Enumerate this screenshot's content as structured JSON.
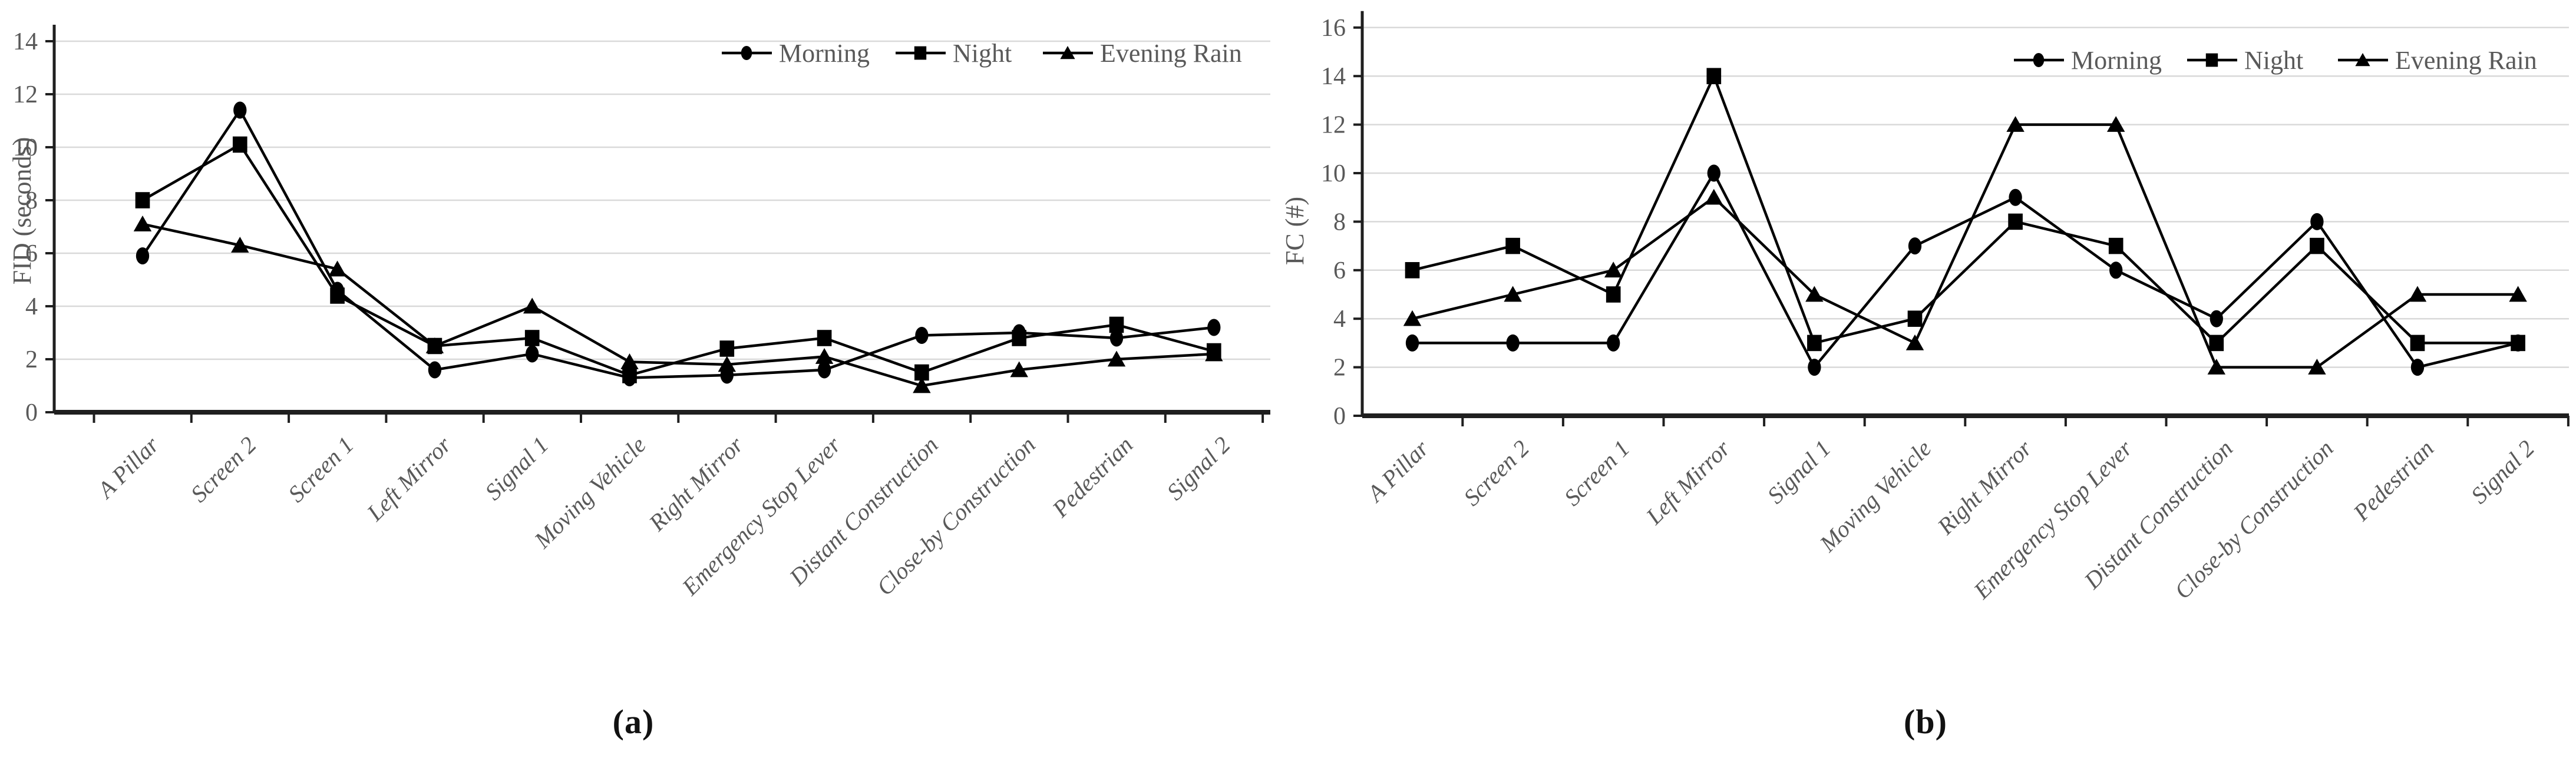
{
  "colors": {
    "series": "#000000",
    "grid": "#d9d9d9",
    "axis": "#1f1f1f",
    "text": "#595959",
    "background": "#ffffff"
  },
  "chart_data": [
    {
      "panel": "a",
      "type": "line",
      "caption": "(a)",
      "title": "",
      "xlabel": "",
      "ylabel": "FID (seconds)",
      "ylim": [
        0,
        14
      ],
      "ytick_step": 2,
      "grid": true,
      "legend_position": "top-right-inside",
      "categories": [
        "A Pillar",
        "Screen 2",
        "Screen 1",
        "Left Mirror",
        "Signal 1",
        "Moving Vehicle",
        "Right Mirror",
        "Emergency Stop Lever",
        "Distant Construction",
        "Close-by Construction",
        "Pedestrian",
        "Signal 2"
      ],
      "series": [
        {
          "name": "Morning",
          "marker": "circle",
          "values": [
            5.9,
            11.4,
            4.6,
            1.6,
            2.2,
            1.3,
            1.4,
            1.6,
            2.9,
            3.0,
            2.8,
            3.2
          ]
        },
        {
          "name": "Night",
          "marker": "square",
          "values": [
            8.0,
            10.1,
            4.4,
            2.5,
            2.8,
            1.4,
            2.4,
            2.8,
            1.5,
            2.8,
            3.3,
            2.3
          ]
        },
        {
          "name": "Evening Rain",
          "marker": "triangle",
          "values": [
            7.1,
            6.3,
            5.4,
            2.5,
            4.0,
            1.9,
            1.8,
            2.1,
            1.0,
            1.6,
            2.0,
            2.2
          ]
        }
      ]
    },
    {
      "panel": "b",
      "type": "line",
      "caption": "(b)",
      "title": "",
      "xlabel": "",
      "ylabel": "FC (#)",
      "ylim": [
        0,
        16
      ],
      "ytick_step": 2,
      "grid": true,
      "legend_position": "top-right-inside",
      "categories": [
        "A Pillar",
        "Screen 2",
        "Screen 1",
        "Left Mirror",
        "Signal 1",
        "Moving Vehicle",
        "Right Mirror",
        "Emergency Stop Lever",
        "Distant Construction",
        "Close-by Construction",
        "Pedestrian",
        "Signal 2"
      ],
      "series": [
        {
          "name": "Morning",
          "marker": "circle",
          "values": [
            3,
            3,
            3,
            10,
            2,
            7,
            9,
            6,
            4,
            8,
            2,
            3
          ]
        },
        {
          "name": "Night",
          "marker": "square",
          "values": [
            6,
            7,
            5,
            14,
            3,
            4,
            8,
            7,
            3,
            7,
            3,
            3
          ]
        },
        {
          "name": "Evening Rain",
          "marker": "triangle",
          "values": [
            4,
            5,
            6,
            9,
            5,
            3,
            12,
            12,
            2,
            2,
            5,
            5
          ]
        }
      ]
    }
  ]
}
